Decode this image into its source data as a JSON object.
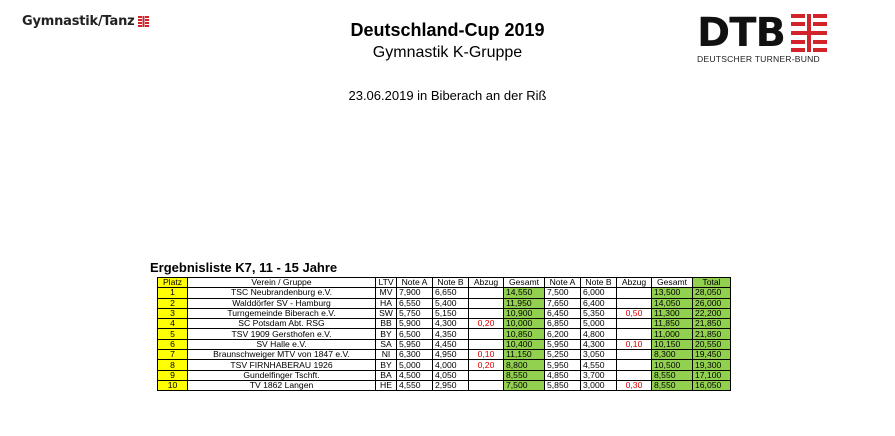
{
  "header": {
    "left_brand": "Gymnastik/Tanz",
    "title": "Deutschland-Cup 2019",
    "subtitle": "Gymnastik K-Gruppe",
    "date_place": "23.06.2019 in Biberach an der Riß",
    "right_brand": "DTB",
    "right_brand_sub": "DEUTSCHER TURNER-BUND",
    "brand_red": "#d2232a"
  },
  "results": {
    "title": "Ergebnisliste K7, 11 - 15 Jahre",
    "headers": [
      "Platz",
      "Verein / Gruppe",
      "LTV",
      "Note A",
      "Note B",
      "Abzug",
      "Gesamt",
      "Note A",
      "Note B",
      "Abzug",
      "Gesamt",
      "Total"
    ],
    "rows": [
      [
        "1",
        "TSC Neubrandenburg e.V.",
        "MV",
        "7,900",
        "6,650",
        "",
        "14,550",
        "7,500",
        "6,000",
        "",
        "13,500",
        "28,050"
      ],
      [
        "2",
        "Walddörfer SV - Hamburg",
        "HA",
        "6,550",
        "5,400",
        "",
        "11,950",
        "7,650",
        "6,400",
        "",
        "14,050",
        "26,000"
      ],
      [
        "3",
        "Turngemeinde Biberach e.V.",
        "SW",
        "5,750",
        "5,150",
        "",
        "10,900",
        "6,450",
        "5,350",
        "0,50",
        "11,300",
        "22,200"
      ],
      [
        "4",
        "SC Potsdam Abt. RSG",
        "BB",
        "5,900",
        "4,300",
        "0,20",
        "10,000",
        "6,850",
        "5,000",
        "",
        "11,850",
        "21,850"
      ],
      [
        "5",
        "TSV 1909 Gersthofen e.V.",
        "BY",
        "6,500",
        "4,350",
        "",
        "10,850",
        "6,200",
        "4,800",
        "",
        "11,000",
        "21,850"
      ],
      [
        "6",
        "SV Halle e.V.",
        "SA",
        "5,950",
        "4,450",
        "",
        "10,400",
        "5,950",
        "4,300",
        "0,10",
        "10,150",
        "20,550"
      ],
      [
        "7",
        "Braunschweiger MTV von 1847 e.V.",
        "NI",
        "6,300",
        "4,950",
        "0,10",
        "11,150",
        "5,250",
        "3,050",
        "",
        "8,300",
        "19,450"
      ],
      [
        "8",
        "TSV FIRNHABERAU 1926",
        "BY",
        "5,000",
        "4,000",
        "0,20",
        "8,800",
        "5,950",
        "4,550",
        "",
        "10,500",
        "19,300"
      ],
      [
        "9",
        "Gundelfinger Tschft.",
        "BA",
        "4,500",
        "4,050",
        "",
        "8,550",
        "4,850",
        "3,700",
        "",
        "8,550",
        "17,100"
      ],
      [
        "10",
        "TV 1862 Langen",
        "HE",
        "4,550",
        "2,950",
        "",
        "7,500",
        "5,850",
        "3,000",
        "0,30",
        "8,550",
        "16,050"
      ]
    ],
    "colors": {
      "platz_bg": "#ffff00",
      "gesamt_bg": "#92d050",
      "abzug_text": "#e00000"
    }
  }
}
